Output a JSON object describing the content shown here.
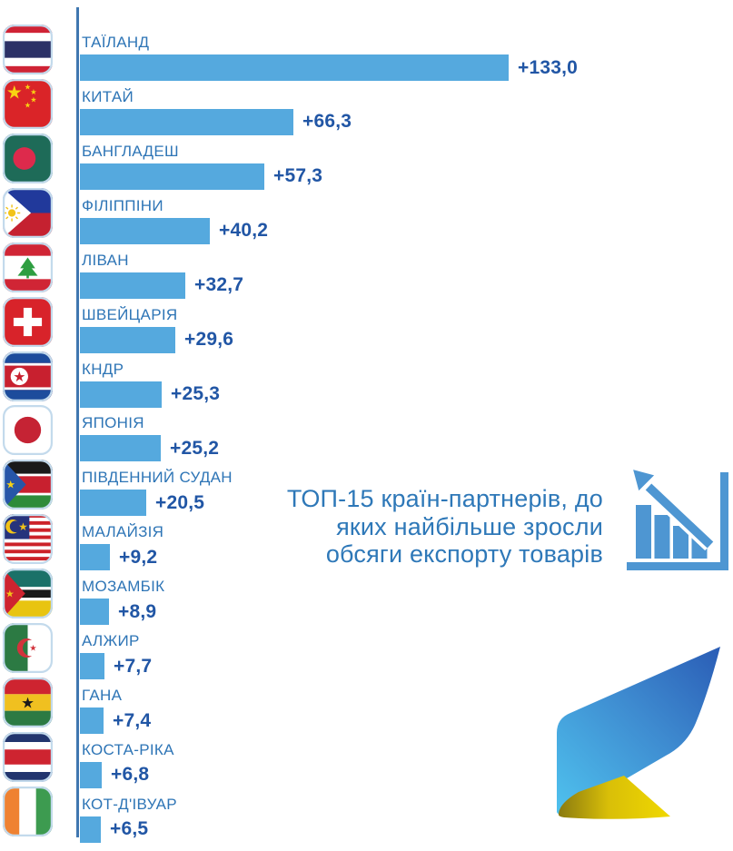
{
  "chart_data": {
    "type": "bar",
    "orientation": "horizontal",
    "title": "ТОП-15 країн-партнерів, до яких найбільше зросли обсяги експорту товарів",
    "categories": [
      "ТАЇЛАНД",
      "КИТАЙ",
      "БАНГЛАДЕШ",
      "ФІЛІППІНИ",
      "ЛІВАН",
      "ШВЕЙЦАРІЯ",
      "КНДР",
      "ЯПОНІЯ",
      "ПІВДЕННИЙ СУДАН",
      "МАЛАЙЗІЯ",
      "МОЗАМБІК",
      "АЛЖИР",
      "ГАНА",
      "КОСТА-РІКА",
      "КОТ-Д'ІВУАР"
    ],
    "values": [
      133.0,
      66.3,
      57.3,
      40.2,
      32.7,
      29.6,
      25.3,
      25.2,
      20.5,
      9.2,
      8.9,
      7.7,
      7.4,
      6.8,
      6.5
    ],
    "value_labels": [
      "+133,0",
      "+66,3",
      "+57,3",
      "+40,2",
      "+32,7",
      "+29,6",
      "+25,3",
      "+25,2",
      "+20,5",
      "+9,2",
      "+8,9",
      "+7,7",
      "+7,4",
      "+6,8",
      "+6,5"
    ],
    "flags": [
      "thailand",
      "china",
      "bangladesh",
      "philippines",
      "lebanon",
      "switzerland",
      "north-korea",
      "japan",
      "south-sudan",
      "malaysia",
      "mozambique",
      "algeria",
      "ghana",
      "costa-rica",
      "cote-divoire"
    ],
    "xlim": [
      0,
      140
    ],
    "grid": false,
    "legend": "none",
    "bar_color": "#55A9DE"
  },
  "title_lines": [
    "ТОП-15 країн-партнерів, до",
    "яких найбільше зросли",
    "обсяги експорту товарів"
  ],
  "colors": {
    "bar": "#55A9DE",
    "country_label": "#2E75B6",
    "value_label": "#2156A5",
    "axis_line": "#4077B0",
    "title_text": "#2E78B8",
    "icon_blue": "#4E96D2",
    "logo_blue_light": "#4FC2EE",
    "logo_blue_dark": "#2A5CB5",
    "logo_yellow": "#F0D800",
    "logo_olive": "#8A7A10"
  }
}
